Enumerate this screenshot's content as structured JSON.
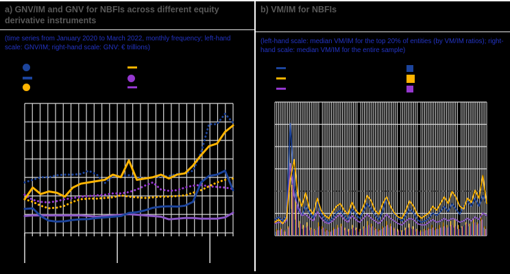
{
  "figure": {
    "background": "#000000",
    "border_color": "#ffffff"
  },
  "colors": {
    "blue": "#1c449c",
    "yellow": "#ffb400",
    "purple": "#8b57c5",
    "purple_bright": "#9537cf",
    "grid": "#d9d9d9",
    "tick": "#f0f0f0",
    "title_gray": "#595959",
    "subtitle_blue": "#2334c5",
    "ref_line_dark": "#3f3f3f"
  },
  "panel_a": {
    "title": "a) GNV/IM and GNV for NBFIs across different equity derivative instruments",
    "subtitle": "(time series from January 2020 to March 2022, monthly frequency; left-hand scale: GNV/IM; right-hand scale: GNV: € trillions)",
    "legend": [
      {
        "marker": "circle",
        "color": "blue",
        "label": ""
      },
      {
        "marker": "dash",
        "color": "blue",
        "label": ""
      },
      {
        "marker": "circle",
        "color": "yellow",
        "label": ""
      },
      {
        "marker": "dash",
        "color": "yellow",
        "label": ""
      },
      {
        "marker": "circle",
        "color": "purple_bright",
        "label": ""
      },
      {
        "marker": "dash",
        "color": "purple_bright",
        "label": ""
      }
    ],
    "chart_data": {
      "type": "line",
      "x_unit": "month",
      "x_range": [
        "January 2020",
        "March 2022"
      ],
      "n_points": 27,
      "major_tick_positions": [
        0,
        12,
        24
      ],
      "axis_tick_labels_visible": false,
      "grid": true,
      "ylim": [
        0,
        100
      ],
      "y_scale_note": "values normalized 0-100 of plot height; numeric axis labels not legible in screenshot",
      "series": [
        {
          "name": "purple-dotted",
          "style": "dotted",
          "color": "purple_bright",
          "values": [
            29.5,
            25.5,
            24,
            23.5,
            24.5,
            26,
            27,
            28,
            28.5,
            29,
            29.5,
            30.5,
            30.5,
            31.5,
            33.5,
            36.5,
            39,
            33.5,
            32.5,
            33,
            35,
            36.5,
            37,
            36,
            35.5,
            35,
            34
          ]
        },
        {
          "name": "yellow-dotted",
          "style": "dotted",
          "color": "yellow",
          "values": [
            26,
            24,
            21,
            19,
            19.5,
            21,
            24,
            26,
            26.5,
            26.5,
            27,
            27.5,
            29,
            28,
            27.5,
            27,
            27.5,
            28,
            28,
            28.5,
            29,
            31,
            33,
            36,
            39,
            41,
            42
          ]
        },
        {
          "name": "blue-dotted",
          "style": "dotted",
          "color": "blue",
          "values": [
            39,
            41,
            43,
            43,
            44.5,
            45,
            45,
            45.5,
            48,
            45,
            38.5,
            44,
            44,
            44.5,
            43,
            42,
            43,
            43.5,
            44,
            45.5,
            46,
            48,
            62,
            84,
            84,
            92,
            85
          ]
        },
        {
          "name": "purple-solid",
          "style": "solid",
          "color": "purple",
          "values": [
            13,
            13.5,
            13.5,
            13.5,
            13.5,
            13.5,
            13.5,
            13.5,
            13,
            12.5,
            13,
            13.5,
            14,
            14.5,
            14,
            13.5,
            13,
            12.5,
            10.5,
            11,
            11.5,
            11.5,
            11,
            11,
            11,
            12,
            15.5
          ]
        },
        {
          "name": "blue-solid",
          "style": "solid",
          "color": "blue",
          "values": [
            18.5,
            19,
            13,
            9.5,
            8.7,
            9,
            10,
            10.5,
            10.7,
            11.5,
            12,
            12.5,
            13,
            15.4,
            16,
            17.4,
            19.4,
            20.3,
            20.6,
            20.3,
            21,
            24,
            39,
            44,
            45,
            48,
            33
          ]
        },
        {
          "name": "yellow-solid",
          "style": "solid",
          "color": "yellow",
          "values": [
            26,
            35,
            30,
            32,
            31,
            28,
            35,
            38,
            39,
            40,
            41,
            45,
            43,
            56,
            41,
            42,
            43,
            45,
            42,
            45,
            46,
            52,
            60,
            67,
            69,
            78,
            83
          ]
        }
      ]
    }
  },
  "panel_b": {
    "title": "b) VM/IM for NBFIs",
    "subtitle": "(left-hand scale: median VM/IM for the top 20% of entities (by VM/IM ratios); right-hand scale: median VM/IM for the entire sample)",
    "legend": [
      {
        "marker": "dash",
        "color": "blue",
        "label": ""
      },
      {
        "marker": "dash",
        "color": "yellow",
        "label": ""
      },
      {
        "marker": "dash",
        "color": "purple_bright",
        "label": ""
      },
      {
        "marker": "square",
        "color": "blue",
        "label": ""
      },
      {
        "marker": "square",
        "color": "yellow",
        "label": ""
      },
      {
        "marker": "square",
        "color": "purple_bright",
        "label": ""
      }
    ],
    "chart_data": {
      "type": "line+bar",
      "x_unit": "week",
      "x_range": [
        "January 2020",
        "March 2022"
      ],
      "n_points": 56,
      "grid": true,
      "grid_density": "dense-vertical",
      "axis_tick_labels_visible": false,
      "ylim": [
        0,
        100
      ],
      "ref_line": 33.3,
      "y_scale_note": "values normalized 0-100 of plot height; numeric axis labels not legible in screenshot",
      "series": [
        {
          "name": "blue-line",
          "style": "solid",
          "color": "blue",
          "values": [
            12,
            14,
            11,
            15,
            84,
            38,
            20,
            15,
            22,
            17,
            13,
            26,
            16,
            12,
            10,
            13,
            17,
            19,
            15,
            12,
            20,
            16,
            13,
            18,
            24,
            20,
            15,
            12,
            18,
            28,
            22,
            16,
            13,
            11,
            15,
            20,
            17,
            12,
            10,
            11,
            13,
            17,
            15,
            18,
            22,
            18,
            24,
            20,
            16,
            22,
            26,
            22,
            28,
            22,
            30,
            24
          ]
        },
        {
          "name": "yellow-line",
          "style": "solid",
          "color": "yellow",
          "values": [
            10,
            12,
            9,
            13,
            42,
            57,
            30,
            22,
            32,
            20,
            16,
            28,
            19,
            15,
            13,
            18,
            22,
            24,
            19,
            16,
            25,
            19,
            16,
            22,
            30,
            26,
            19,
            16,
            24,
            29,
            22,
            17,
            14,
            13,
            19,
            26,
            22,
            16,
            13,
            15,
            17,
            22,
            19,
            24,
            29,
            24,
            33,
            29,
            22,
            20,
            28,
            25,
            34,
            28,
            45,
            24
          ]
        },
        {
          "name": "purple-line",
          "style": "solid",
          "color": "purple",
          "values": [
            9,
            10,
            9,
            11,
            54,
            30,
            22,
            15,
            16,
            13,
            11,
            18,
            13,
            10,
            9,
            11,
            14,
            16,
            12,
            10,
            15,
            12,
            10,
            13,
            16,
            13,
            11,
            9,
            12,
            16,
            13,
            11,
            9,
            8,
            11,
            13,
            12,
            9,
            8,
            8,
            10,
            12,
            10,
            11,
            13,
            11,
            13,
            12,
            10,
            11,
            13,
            11,
            14,
            12,
            17,
            15
          ]
        }
      ],
      "bars": [
        {
          "name": "blue-bars",
          "color": "blue",
          "values": [
            3,
            4,
            3,
            5,
            20,
            12,
            6,
            5,
            6,
            4,
            3,
            6,
            5,
            3,
            3,
            4,
            5,
            6,
            4,
            3,
            5,
            4,
            3,
            5,
            7,
            6,
            4,
            3,
            5,
            7,
            6,
            4,
            3,
            3,
            4,
            6,
            5,
            3,
            3,
            3,
            4,
            5,
            4,
            5,
            6,
            6,
            7,
            6,
            5,
            6,
            8,
            7,
            9,
            8,
            11,
            6
          ]
        },
        {
          "name": "yellow-bars",
          "color": "yellow",
          "values": [
            5,
            6,
            4,
            7,
            38,
            26,
            11,
            8,
            10,
            6,
            5,
            10,
            7,
            5,
            4,
            6,
            8,
            9,
            6,
            5,
            8,
            6,
            5,
            7,
            11,
            9,
            6,
            5,
            7,
            11,
            9,
            6,
            5,
            4,
            6,
            9,
            7,
            5,
            4,
            5,
            6,
            8,
            6,
            8,
            10,
            8,
            11,
            13,
            8,
            7,
            10,
            9,
            13,
            10,
            16,
            7
          ]
        },
        {
          "name": "purple-bars",
          "color": "purple_bright",
          "values": [
            4,
            5,
            3,
            6,
            44,
            22,
            9,
            6,
            7,
            5,
            4,
            7,
            6,
            4,
            3,
            5,
            6,
            7,
            5,
            4,
            6,
            5,
            4,
            6,
            8,
            7,
            5,
            4,
            6,
            8,
            7,
            5,
            4,
            3,
            5,
            6,
            5,
            4,
            3,
            4,
            5,
            6,
            5,
            6,
            7,
            6,
            8,
            7,
            5,
            7,
            9,
            7,
            10,
            9,
            12,
            5
          ]
        }
      ]
    }
  }
}
